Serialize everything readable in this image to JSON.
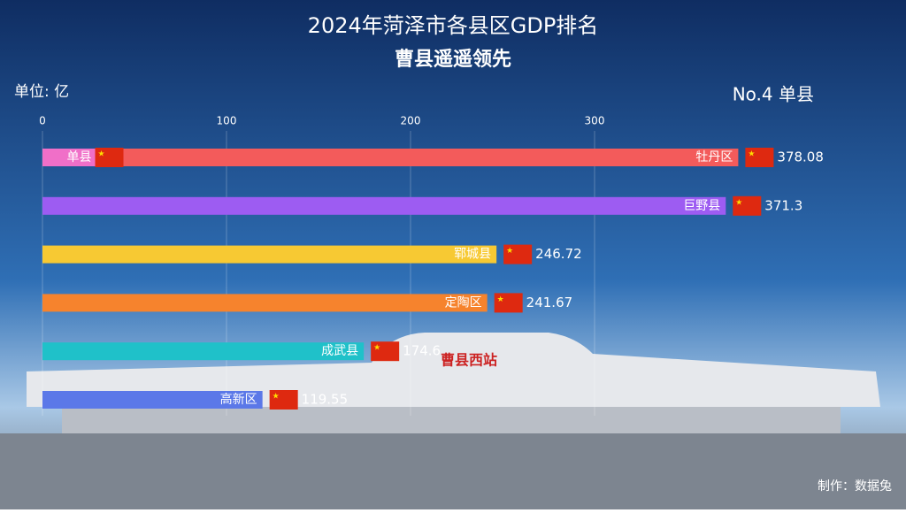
{
  "chart_data": {
    "type": "bar",
    "title": "2024年菏泽市各县区GDP排名",
    "subtitle": "曹县遥遥领先",
    "unit_label": "单位: 亿",
    "rank_label": "No.4 单县",
    "footer": "制作：数据兔",
    "categories": [
      "牡丹区",
      "巨野县",
      "郓城县",
      "定陶区",
      "成武县",
      "高新区",
      "单县"
    ],
    "values": [
      378.08,
      371.3,
      246.72,
      241.67,
      174.6,
      119.55,
      44
    ],
    "value_labels": [
      "378.08",
      "371.3",
      "246.72",
      "241.67",
      "174.6",
      "119.55",
      null
    ],
    "colors": [
      "#f35b5b",
      "#9d5cf2",
      "#f7c933",
      "#f6832d",
      "#1fc1c9",
      "#5b78e8",
      "#f06fc8"
    ],
    "xlim": [
      0,
      400
    ],
    "xticks": [
      0,
      100,
      200,
      300
    ],
    "grid": true
  }
}
